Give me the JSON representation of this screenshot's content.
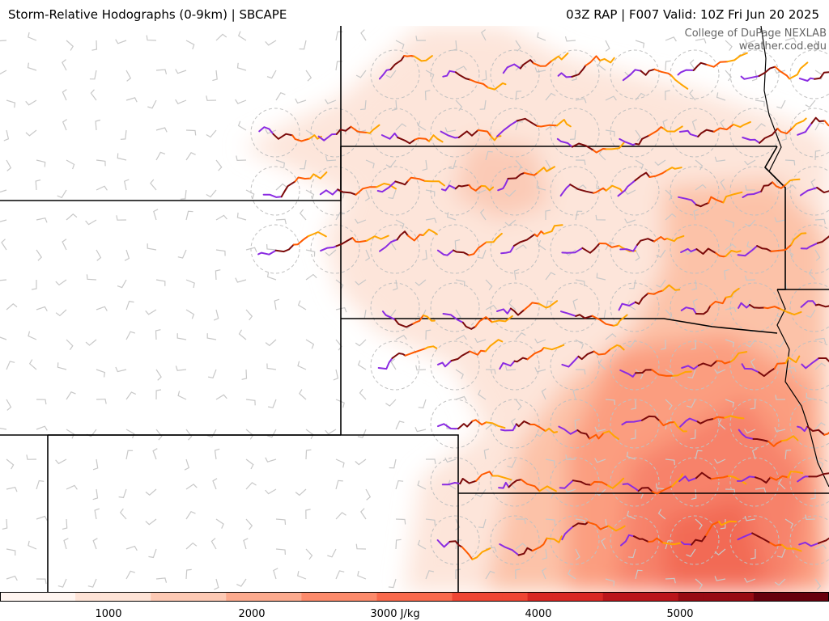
{
  "header": {
    "title": "Storm-Relative Hodographs (0-9km) | SBCAPE",
    "run_info": "03Z RAP | F007 Valid: 10Z Fri Jun 20 2025"
  },
  "credit": {
    "line1": "College of DuPage NEXLAB",
    "line2": "weather.cod.edu"
  },
  "colorbar": {
    "ticks": [
      "1000",
      "2000",
      "3000 J/kg",
      "4000",
      "5000"
    ],
    "colors": [
      "#fff5f0",
      "#fee3d6",
      "#fdc9b4",
      "#fcaa8e",
      "#fc8a6b",
      "#f9694c",
      "#ef4533",
      "#d92723",
      "#bb151a",
      "#970b13",
      "#67000d"
    ]
  },
  "hodograph_colors": {
    "low": "#8a2be2",
    "mid_low": "#7b0a0a",
    "mid_high": "#ff5a00",
    "high": "#ffa500"
  }
}
